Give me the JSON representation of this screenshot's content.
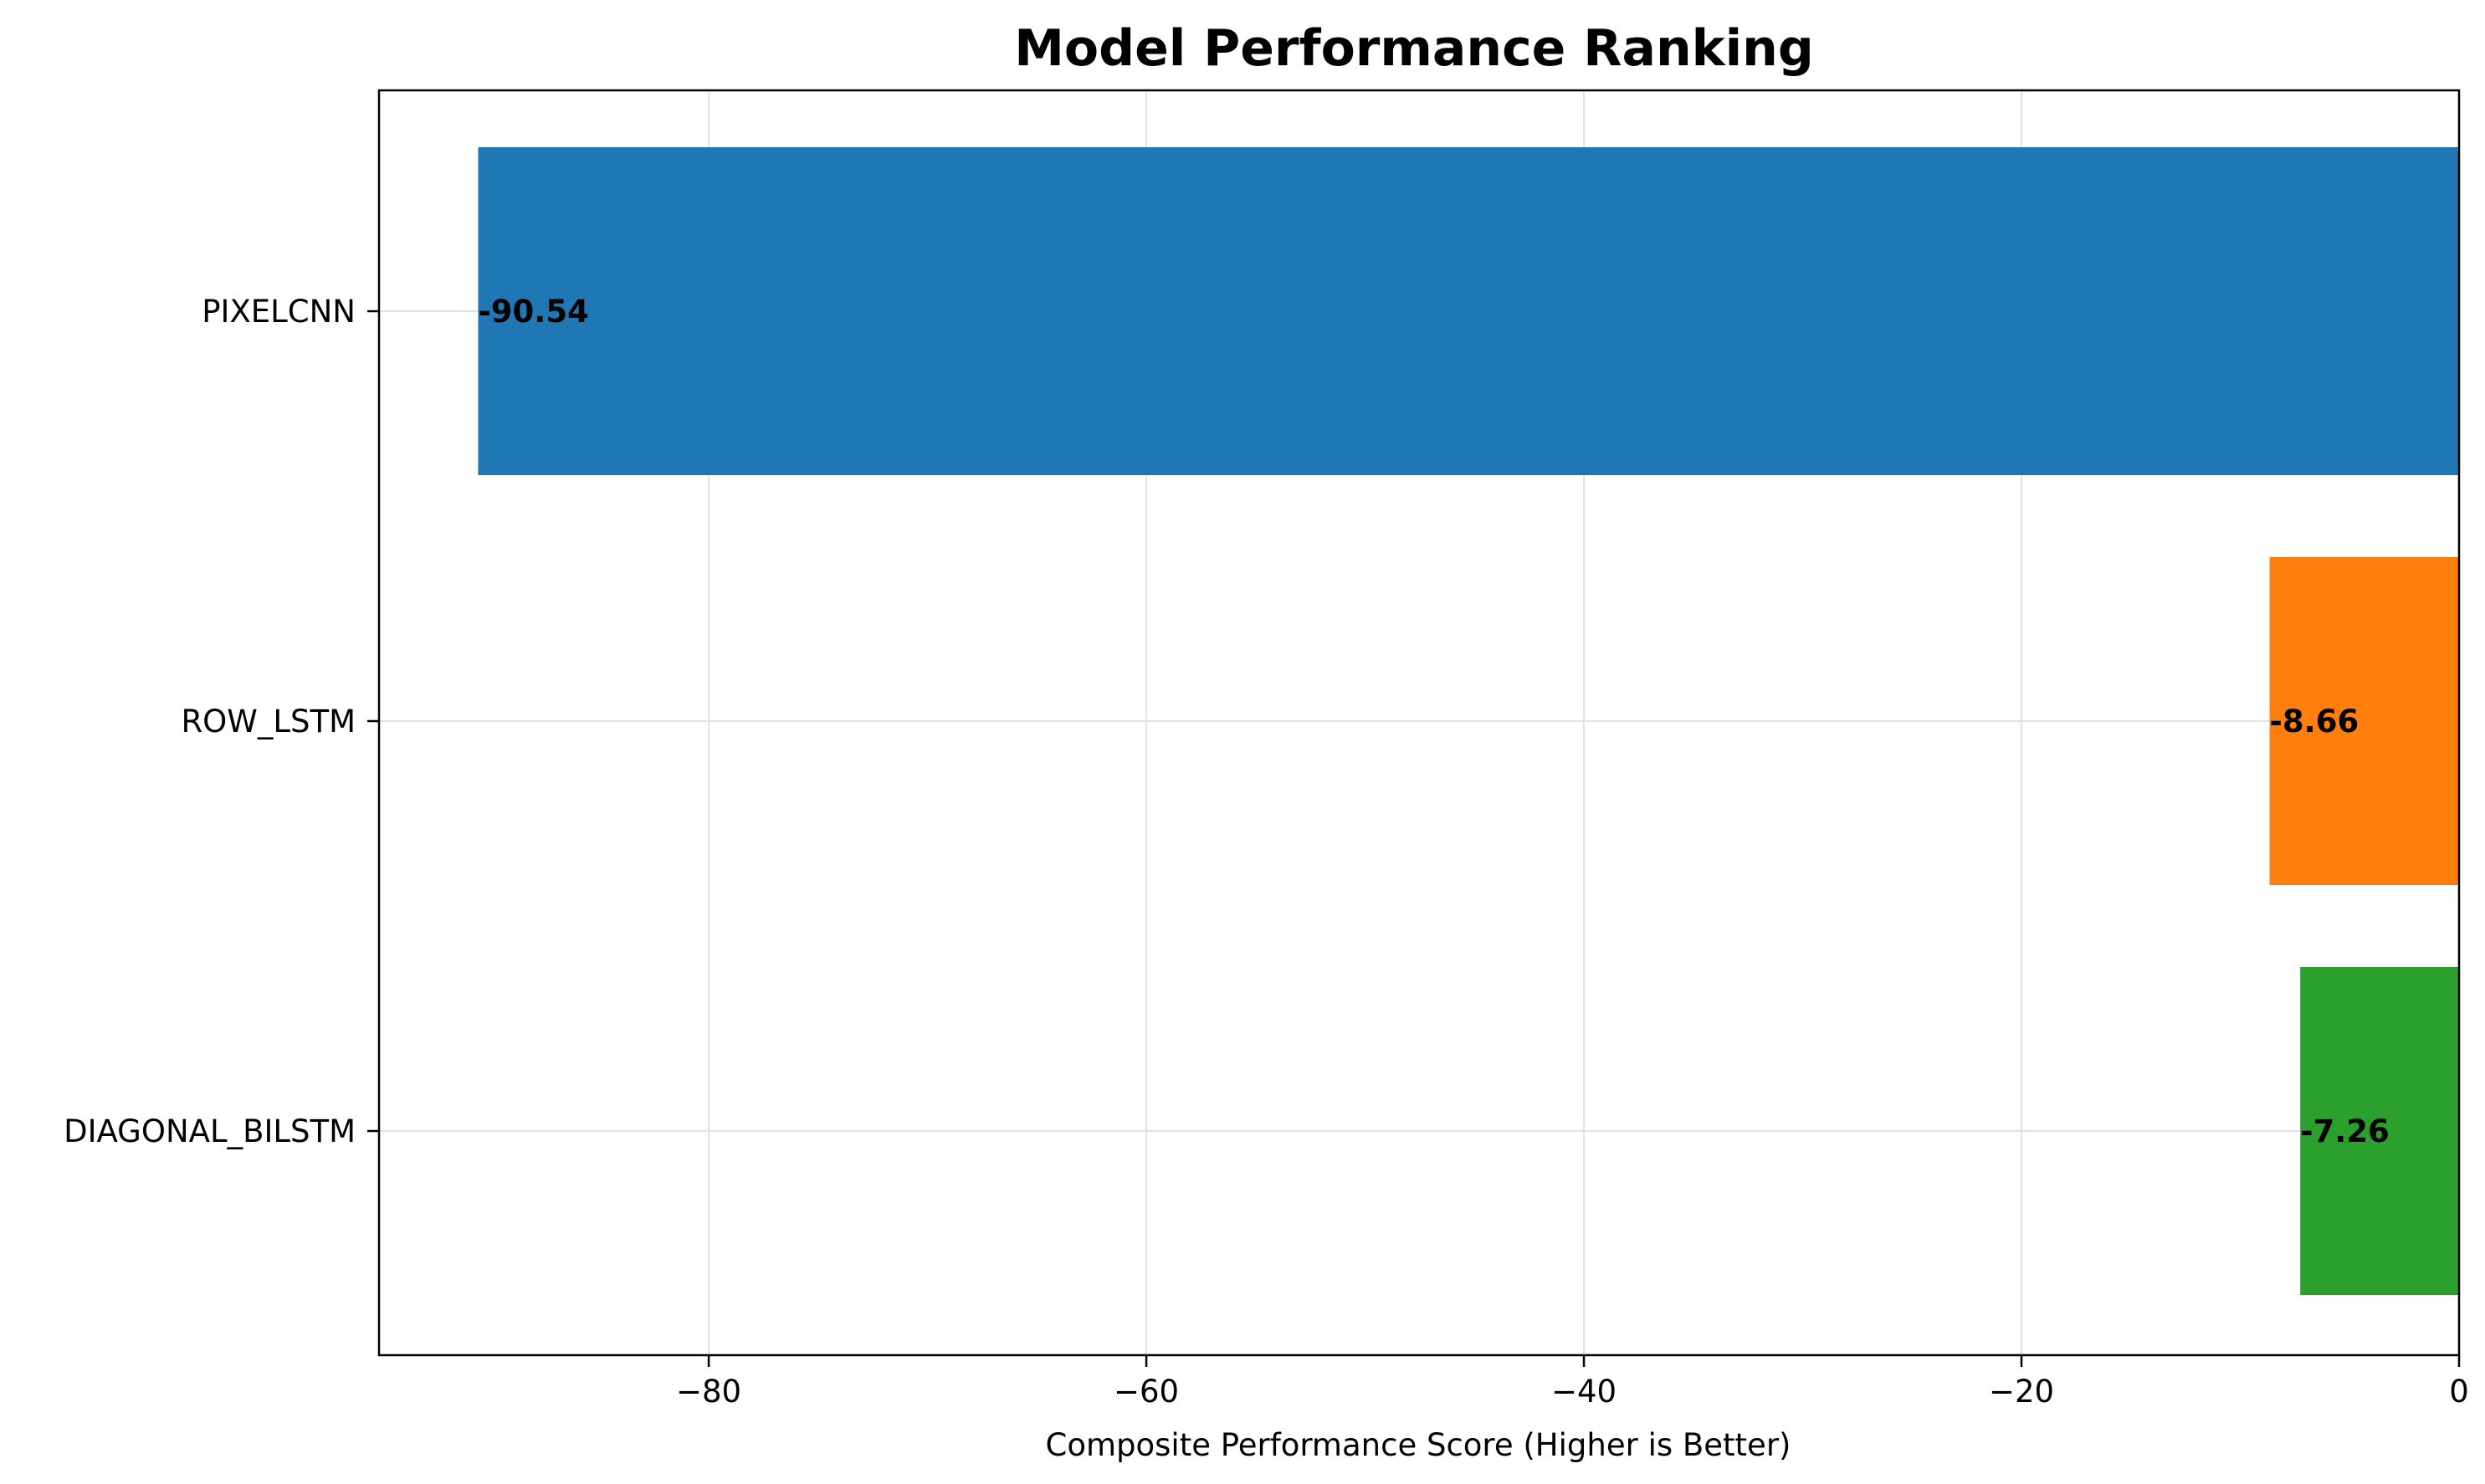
{
  "chart_data": {
    "type": "bar",
    "orientation": "horizontal",
    "title": "Model Performance Ranking",
    "xlabel": "Composite Performance Score (Higher is Better)",
    "ylabel": "",
    "categories": [
      "PIXELCNN",
      "ROW_LSTM",
      "DIAGONAL_BILSTM"
    ],
    "values": [
      -90.54,
      -8.66,
      -7.26
    ],
    "value_labels": [
      "-90.54",
      "-8.66",
      "-7.26"
    ],
    "colors": [
      "#1f77b4",
      "#ff7f0e",
      "#2ca02c"
    ],
    "xlim": [
      -95.07,
      0
    ],
    "xticks": [
      -80,
      -60,
      -40,
      -20,
      0
    ],
    "xtick_labels": [
      "−80",
      "−60",
      "−40",
      "−20",
      "0"
    ],
    "grid": true,
    "legend": false
  }
}
